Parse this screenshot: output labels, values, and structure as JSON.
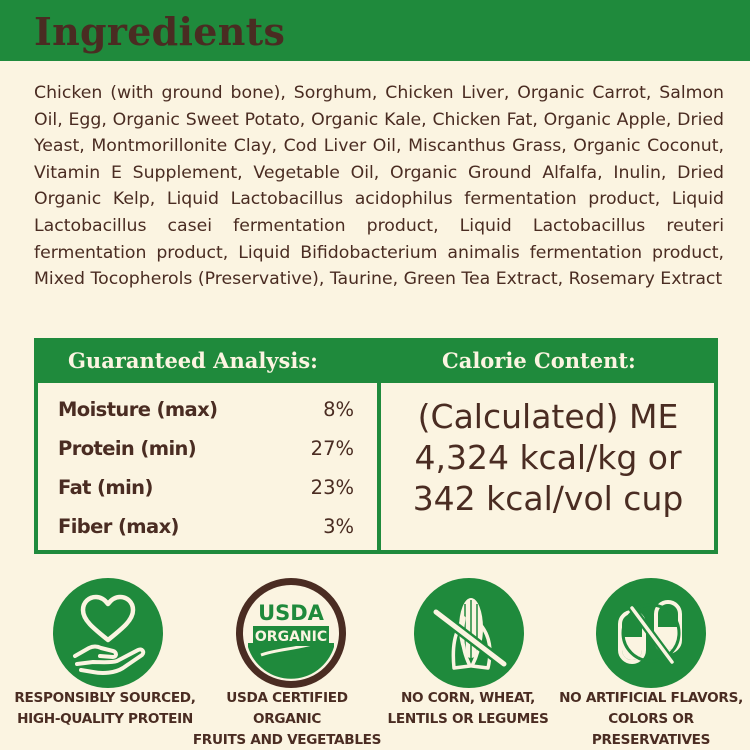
{
  "header": {
    "title": "Ingredients"
  },
  "ingredients_text": "Chicken (with ground bone), Sorghum, Chicken Liver, Organic Carrot, Salmon Oil, Egg, Organic Sweet Potato, Organic Kale, Chicken Fat, Organic Apple, Dried Yeast, Montmorillonite Clay, Cod Liver Oil, Miscanthus Grass, Organic Coconut, Vitamin E Supplement, Vegetable Oil, Organic Ground Alfalfa, Inulin, Dried Organic Kelp, Liquid Lactobacillus acidophilus fermentation product, Liquid Lactobacillus casei fermentation product, Liquid Lactobacillus reuteri fermentation product, Liquid Bifidobacterium animalis fermentation product, Mixed Tocopherols (Preservative), Taurine, Green Tea Extract, Rosemary Extract",
  "guaranteed_analysis": {
    "title": "Guaranteed Analysis:",
    "rows": [
      {
        "label": "Moisture (max)",
        "value": "8%"
      },
      {
        "label": "Protein (min)",
        "value": "27%"
      },
      {
        "label": "Fat (min)",
        "value": "23%"
      },
      {
        "label": "Fiber (max)",
        "value": "3%"
      }
    ]
  },
  "calorie_content": {
    "title": "Calorie Content:",
    "lines": [
      "(Calculated) ME",
      "4,324 kcal/kg or",
      "342 kcal/vol cup"
    ]
  },
  "badges": [
    {
      "icon": "heart-hand-icon",
      "caption": "RESPONSIBLY SOURCED,\nHIGH-QUALITY PROTEIN"
    },
    {
      "icon": "usda-organic-seal",
      "seal_top": "USDA",
      "seal_bottom": "ORGANIC",
      "caption": "USDA CERTIFIED ORGANIC\nFRUITS AND VEGETABLES"
    },
    {
      "icon": "no-corn-icon",
      "caption": "NO CORN, WHEAT,\nLENTILS OR LEGUMES"
    },
    {
      "icon": "no-capsule-icon",
      "caption": "NO ARTIFICIAL FLAVORS,\nCOLORS OR PRESERVATIVES"
    }
  ],
  "colors": {
    "green": "#1f8a3c",
    "brown": "#4a2c22",
    "cream": "#fbf4e1"
  }
}
